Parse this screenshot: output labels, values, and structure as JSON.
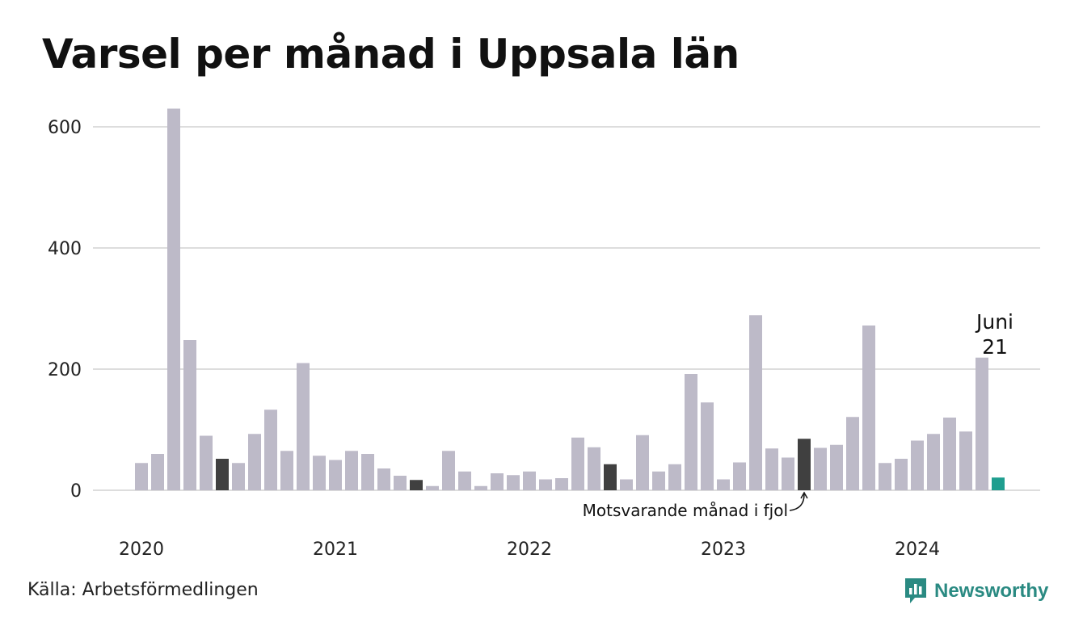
{
  "title": "Varsel per månad i Uppsala län",
  "source": "Källa: Arbetsförmedlingen",
  "brand": {
    "name": "Newsworthy",
    "icon": "newsworthy-logo-icon",
    "color": "#2a8a82"
  },
  "colors": {
    "bar": "#bdbac8",
    "previous_year": "#404040",
    "current": "#1f9e8f",
    "grid": "#dddddd"
  },
  "chart_data": {
    "type": "bar",
    "title": "Varsel per månad i Uppsala län",
    "xlabel": "",
    "ylabel": "",
    "ylim": [
      0,
      650
    ],
    "y_ticks": [
      0,
      200,
      400,
      600
    ],
    "grid": true,
    "x_tick_labels": [
      {
        "label": "2020",
        "index": 0
      },
      {
        "label": "2021",
        "index": 12
      },
      {
        "label": "2022",
        "index": 24
      },
      {
        "label": "2023",
        "index": 36
      },
      {
        "label": "2024",
        "index": 48
      }
    ],
    "categories": [
      "2020-01",
      "2020-02",
      "2020-03",
      "2020-04",
      "2020-05",
      "2020-06",
      "2020-07",
      "2020-08",
      "2020-09",
      "2020-10",
      "2020-11",
      "2020-12",
      "2021-01",
      "2021-02",
      "2021-03",
      "2021-04",
      "2021-05",
      "2021-06",
      "2021-07",
      "2021-08",
      "2021-09",
      "2021-10",
      "2021-11",
      "2021-12",
      "2022-01",
      "2022-02",
      "2022-03",
      "2022-04",
      "2022-05",
      "2022-06",
      "2022-07",
      "2022-08",
      "2022-09",
      "2022-10",
      "2022-11",
      "2022-12",
      "2023-01",
      "2023-02",
      "2023-03",
      "2023-04",
      "2023-05",
      "2023-06",
      "2023-07",
      "2023-08",
      "2023-09",
      "2023-10",
      "2023-11",
      "2023-12",
      "2024-01",
      "2024-02",
      "2024-03",
      "2024-04",
      "2024-05",
      "2024-06"
    ],
    "values": [
      45,
      60,
      630,
      248,
      90,
      52,
      45,
      93,
      133,
      65,
      210,
      57,
      50,
      65,
      60,
      36,
      24,
      17,
      7,
      65,
      31,
      7,
      28,
      25,
      31,
      18,
      20,
      87,
      71,
      43,
      18,
      91,
      31,
      43,
      192,
      145,
      18,
      46,
      289,
      69,
      54,
      85,
      70,
      75,
      121,
      272,
      45,
      52,
      82,
      93,
      120,
      97,
      219,
      21
    ],
    "previous_year_indices": [
      5,
      17,
      29,
      41
    ],
    "current_index": 53,
    "annotations": {
      "current_month": "Juni",
      "current_value": "21",
      "previous_year": "Motsvarande månad i fjol"
    }
  }
}
